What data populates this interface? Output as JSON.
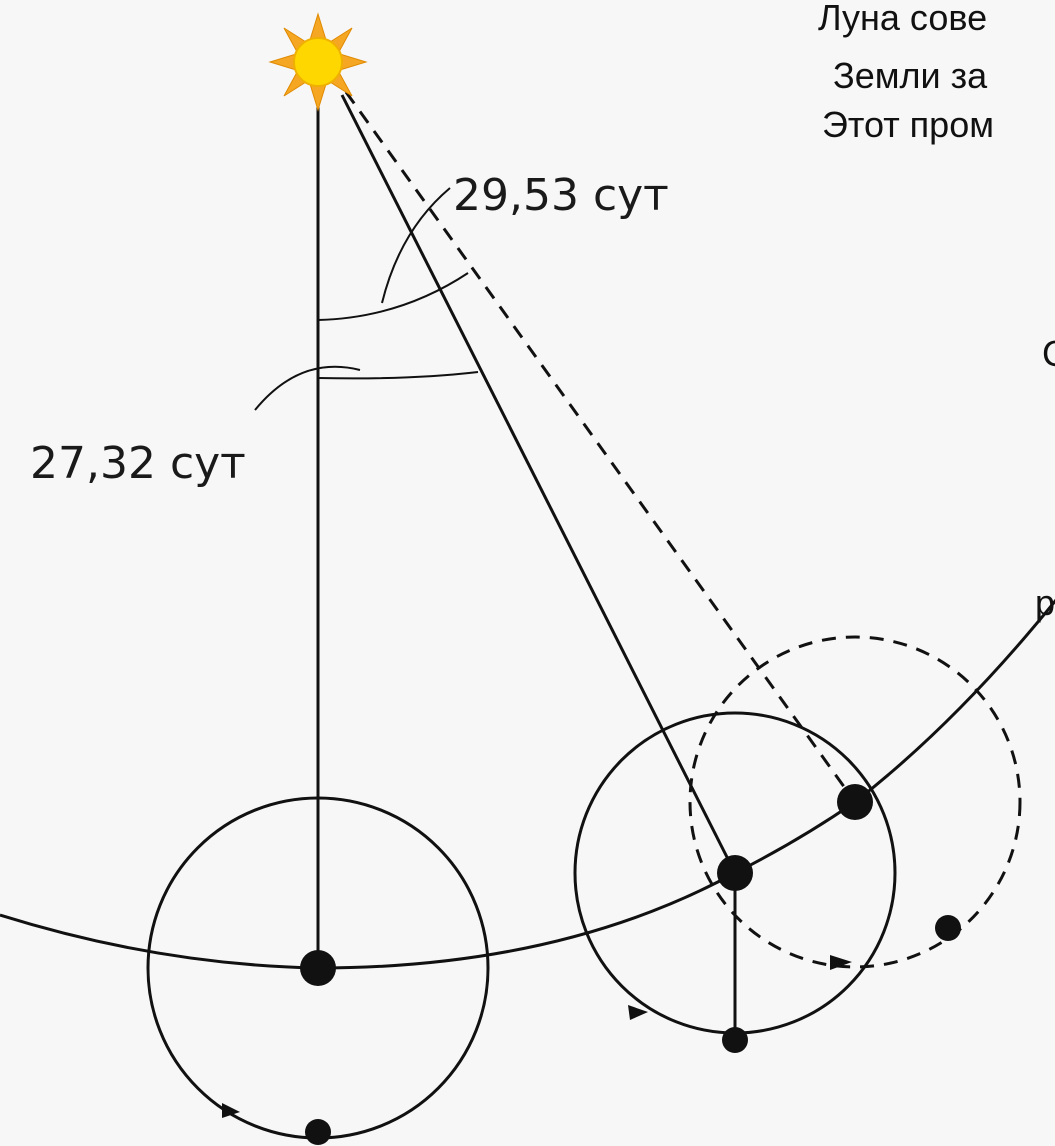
{
  "labels": {
    "synodic": "29,53 сут",
    "sidereal": "27,32 сут"
  },
  "text_fragments": [
    "Луна сове",
    "Земли за",
    "Этот пром",
    "С",
    "р"
  ]
}
